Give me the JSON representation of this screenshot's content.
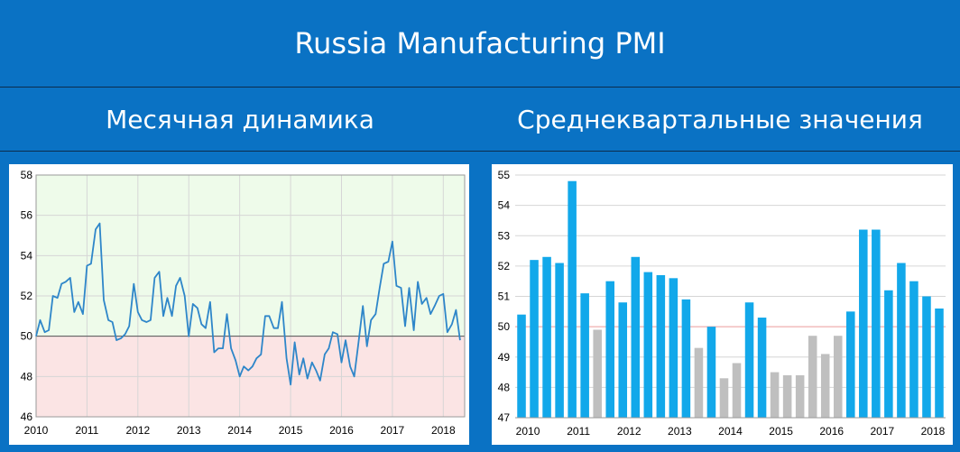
{
  "header": {
    "title": "Russia Manufacturing PMI"
  },
  "subtitles": {
    "left": "Месячная динамика",
    "right": "Среднеквартальные значения"
  },
  "colors": {
    "background": "#0a72c4",
    "line": "#2e86c9",
    "bar_above": "#12a8ea",
    "bar_below": "#bfbfbf",
    "zone_above": "#eefbea",
    "zone_below": "#fbe4e4",
    "ref_line": "#f2a3a3"
  },
  "chart_data": [
    {
      "type": "line",
      "title": "Месячная динамика",
      "ylim": [
        46,
        58
      ],
      "yticks": [
        "46",
        "48",
        "50",
        "52",
        "54",
        "56",
        "58"
      ],
      "xticks": [
        "2010",
        "2011",
        "2012",
        "2013",
        "2014",
        "2015",
        "2016",
        "2017",
        "2018"
      ],
      "xlim": [
        2010.0,
        2018.42
      ],
      "reference": 50,
      "shading": "green above 50, red below 50",
      "grid": true,
      "series": [
        {
          "values": [
            [
              2010.0,
              50.0
            ],
            [
              2010.08,
              50.8
            ],
            [
              2010.17,
              50.2
            ],
            [
              2010.25,
              50.3
            ],
            [
              2010.33,
              52.0
            ],
            [
              2010.42,
              51.9
            ],
            [
              2010.5,
              52.6
            ],
            [
              2010.58,
              52.7
            ],
            [
              2010.67,
              52.9
            ],
            [
              2010.75,
              51.2
            ],
            [
              2010.83,
              51.7
            ],
            [
              2010.92,
              51.1
            ],
            [
              2011.0,
              53.5
            ],
            [
              2011.08,
              53.6
            ],
            [
              2011.17,
              55.3
            ],
            [
              2011.25,
              55.6
            ],
            [
              2011.33,
              51.8
            ],
            [
              2011.42,
              50.8
            ],
            [
              2011.5,
              50.7
            ],
            [
              2011.58,
              49.8
            ],
            [
              2011.67,
              49.9
            ],
            [
              2011.75,
              50.1
            ],
            [
              2011.83,
              50.5
            ],
            [
              2011.92,
              52.6
            ],
            [
              2012.0,
              51.2
            ],
            [
              2012.08,
              50.8
            ],
            [
              2012.17,
              50.7
            ],
            [
              2012.25,
              50.8
            ],
            [
              2012.33,
              52.9
            ],
            [
              2012.42,
              53.2
            ],
            [
              2012.5,
              51.0
            ],
            [
              2012.58,
              51.9
            ],
            [
              2012.67,
              51.0
            ],
            [
              2012.75,
              52.5
            ],
            [
              2012.83,
              52.9
            ],
            [
              2012.92,
              52.0
            ],
            [
              2013.0,
              50.0
            ],
            [
              2013.08,
              51.6
            ],
            [
              2013.17,
              51.4
            ],
            [
              2013.25,
              50.6
            ],
            [
              2013.33,
              50.4
            ],
            [
              2013.42,
              51.7
            ],
            [
              2013.5,
              49.2
            ],
            [
              2013.58,
              49.4
            ],
            [
              2013.67,
              49.4
            ],
            [
              2013.75,
              51.1
            ],
            [
              2013.83,
              49.4
            ],
            [
              2013.92,
              48.8
            ],
            [
              2014.0,
              48.0
            ],
            [
              2014.08,
              48.5
            ],
            [
              2014.17,
              48.3
            ],
            [
              2014.25,
              48.5
            ],
            [
              2014.33,
              48.9
            ],
            [
              2014.42,
              49.1
            ],
            [
              2014.5,
              51.0
            ],
            [
              2014.58,
              51.0
            ],
            [
              2014.67,
              50.4
            ],
            [
              2014.75,
              50.4
            ],
            [
              2014.83,
              51.7
            ],
            [
              2014.92,
              48.9
            ],
            [
              2015.0,
              47.6
            ],
            [
              2015.08,
              49.7
            ],
            [
              2015.17,
              48.1
            ],
            [
              2015.25,
              48.9
            ],
            [
              2015.33,
              47.9
            ],
            [
              2015.42,
              48.7
            ],
            [
              2015.5,
              48.3
            ],
            [
              2015.58,
              47.8
            ],
            [
              2015.67,
              49.1
            ],
            [
              2015.75,
              49.4
            ],
            [
              2015.83,
              50.2
            ],
            [
              2015.92,
              50.1
            ],
            [
              2016.0,
              48.7
            ],
            [
              2016.08,
              49.8
            ],
            [
              2016.17,
              48.5
            ],
            [
              2016.25,
              48.0
            ],
            [
              2016.33,
              49.6
            ],
            [
              2016.42,
              51.5
            ],
            [
              2016.5,
              49.5
            ],
            [
              2016.58,
              50.8
            ],
            [
              2016.67,
              51.1
            ],
            [
              2016.75,
              52.4
            ],
            [
              2016.83,
              53.6
            ],
            [
              2016.92,
              53.7
            ],
            [
              2017.0,
              54.7
            ],
            [
              2017.08,
              52.5
            ],
            [
              2017.17,
              52.4
            ],
            [
              2017.25,
              50.5
            ],
            [
              2017.33,
              52.4
            ],
            [
              2017.42,
              50.3
            ],
            [
              2017.5,
              52.7
            ],
            [
              2017.58,
              51.6
            ],
            [
              2017.67,
              51.9
            ],
            [
              2017.75,
              51.1
            ],
            [
              2017.83,
              51.5
            ],
            [
              2017.92,
              52.0
            ],
            [
              2018.0,
              52.1
            ],
            [
              2018.08,
              50.2
            ],
            [
              2018.17,
              50.6
            ],
            [
              2018.25,
              51.3
            ],
            [
              2018.33,
              49.8
            ]
          ]
        }
      ]
    },
    {
      "type": "bar",
      "title": "Среднеквартальные значения",
      "ylim": [
        47,
        55
      ],
      "yticks": [
        "47",
        "48",
        "49",
        "50",
        "51",
        "52",
        "53",
        "54",
        "55"
      ],
      "xticks": [
        "2010",
        "2011",
        "2012",
        "2013",
        "2014",
        "2015",
        "2016",
        "2017",
        "2018"
      ],
      "reference": 50,
      "grid": true,
      "values": [
        50.4,
        52.2,
        52.3,
        52.1,
        54.8,
        51.1,
        49.9,
        51.5,
        50.8,
        52.3,
        51.8,
        51.7,
        51.6,
        50.9,
        49.3,
        50.0,
        48.3,
        48.8,
        50.8,
        50.3,
        48.5,
        48.4,
        48.4,
        49.7,
        49.1,
        49.7,
        50.5,
        53.2,
        53.2,
        51.2,
        52.1,
        51.5,
        51.0,
        50.6
      ]
    }
  ]
}
